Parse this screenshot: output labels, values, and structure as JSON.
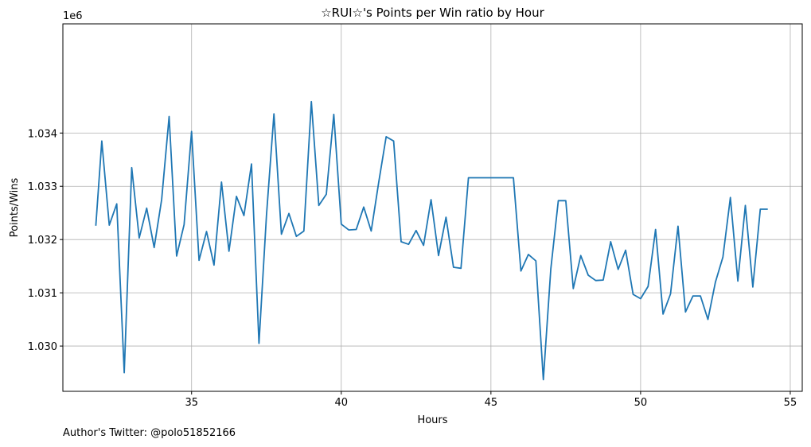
{
  "chart_data": {
    "type": "line",
    "title": "☆RUI☆'s Points per Win ratio by Hour",
    "xlabel": "Hours",
    "ylabel": "Points/Wins",
    "y_offset_label": "1e6",
    "xlim": [
      30.7,
      55.4
    ],
    "ylim": [
      1.02915,
      1.03605
    ],
    "x_ticks": [
      35,
      40,
      45,
      50,
      55
    ],
    "x_tick_labels": [
      "35",
      "40",
      "45",
      "50",
      "55"
    ],
    "y_ticks": [
      1.03,
      1.031,
      1.032,
      1.033,
      1.034
    ],
    "y_tick_labels": [
      "1.030",
      "1.031",
      "1.032",
      "1.033",
      "1.034"
    ],
    "grid": true,
    "line_color": "#1f77b4",
    "series": [
      {
        "x": [
          31.8,
          32.0,
          32.25,
          32.5,
          32.75,
          33.0,
          33.25,
          33.5,
          33.75,
          34.0,
          34.25,
          34.5,
          34.75,
          35.0,
          35.25,
          35.5,
          35.75,
          36.0,
          36.25,
          36.5,
          36.75,
          37.0,
          37.25,
          37.5,
          37.75,
          38.0,
          38.25,
          38.5,
          38.75,
          39.0,
          39.25,
          39.5,
          39.75,
          40.0,
          40.25,
          40.5,
          40.75,
          41.0,
          41.25,
          41.5,
          41.75,
          42.0,
          42.25,
          42.5,
          42.75,
          43.0,
          43.25,
          43.5,
          43.75,
          44.0,
          44.25,
          45.75,
          46.0,
          46.25,
          46.5,
          46.75,
          47.0,
          47.25,
          47.5,
          47.75,
          48.0,
          48.25,
          48.5,
          48.75,
          49.0,
          49.25,
          49.5,
          49.75,
          50.0,
          50.25,
          50.5,
          50.75,
          51.0,
          51.25,
          51.5,
          51.75,
          52.0,
          52.25,
          52.5,
          52.75,
          53.0,
          53.25,
          53.5,
          53.75,
          54.0,
          54.25
        ],
        "y": [
          1.03226,
          1.03385,
          1.03227,
          1.03267,
          1.0295,
          1.03335,
          1.03203,
          1.03259,
          1.03185,
          1.03275,
          1.03431,
          1.03169,
          1.03228,
          1.03403,
          1.03161,
          1.03215,
          1.03152,
          1.03308,
          1.03178,
          1.03281,
          1.03245,
          1.03342,
          1.03005,
          1.03245,
          1.03436,
          1.0321,
          1.03249,
          1.03206,
          1.03216,
          1.03459,
          1.03264,
          1.03285,
          1.03435,
          1.03229,
          1.03218,
          1.03219,
          1.03261,
          1.03216,
          1.03307,
          1.03393,
          1.03385,
          1.03196,
          1.03191,
          1.03217,
          1.03189,
          1.03275,
          1.0317,
          1.03242,
          1.03148,
          1.03146,
          1.03316,
          1.03316,
          1.03141,
          1.03172,
          1.0316,
          1.02937,
          1.03145,
          1.03273,
          1.03273,
          1.03108,
          1.0317,
          1.03133,
          1.03123,
          1.03124,
          1.03196,
          1.03144,
          1.0318,
          1.03097,
          1.03089,
          1.03112,
          1.03219,
          1.0306,
          1.03098,
          1.03225,
          1.03064,
          1.03094,
          1.03094,
          1.0305,
          1.0312,
          1.03167,
          1.03279,
          1.03122,
          1.03264,
          1.03111,
          1.03257,
          1.03257
        ]
      }
    ]
  },
  "footer": {
    "author_text": "Author's Twitter: @polo51852166"
  }
}
